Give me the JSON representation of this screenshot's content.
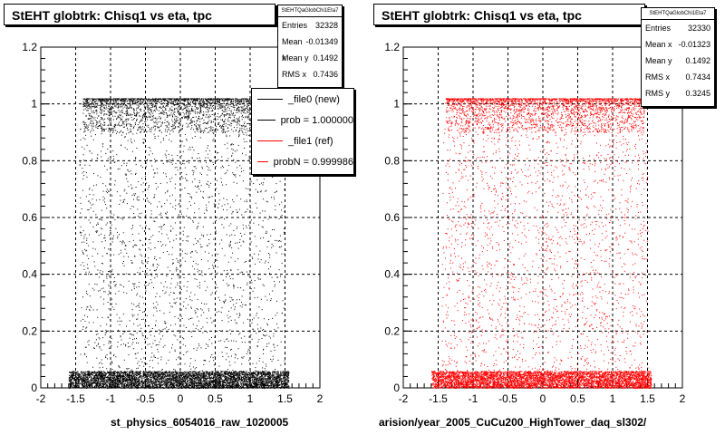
{
  "chart_data": [
    {
      "type": "scatter",
      "title": "StEHT globtrk: Chisq1 vs eta, tpc",
      "xlim": [
        -2,
        2
      ],
      "ylim": [
        0,
        1.2
      ],
      "x_ticks": [
        "-2",
        "-1.5",
        "-1",
        "-0.5",
        "0",
        "0.5",
        "1",
        "1.5",
        "2"
      ],
      "y_ticks": [
        "0",
        "0.2",
        "0.4",
        "0.6",
        "0.8",
        "1",
        "1.2"
      ],
      "grid": true,
      "marker_color": "#000000",
      "stats": {
        "name": "StEHTQaGlobChi1Eta7",
        "rows": [
          {
            "label": "Entries",
            "value": "32328"
          },
          {
            "label": "Mean x",
            "value": "-0.01349"
          },
          {
            "label": "Mean y",
            "value": "0.1492"
          },
          {
            "label": "RMS x",
            "value": "0.7436"
          }
        ]
      },
      "legend": [
        {
          "label": "_file0 (new)",
          "color": "#000000"
        },
        {
          "label": "prob = 1.000000",
          "color": "#000000"
        },
        {
          "label": "_file1 (ref)",
          "color": "#ff0000"
        },
        {
          "label": "probN = 0.999986",
          "color": "#ff0000"
        }
      ],
      "xcaption": "st_physics_6054016_raw_1020005",
      "footer": "",
      "distribution": {
        "dense_band_y": [
          0.0,
          0.06
        ],
        "top_band_y": [
          0.9,
          1.02
        ],
        "x_range": [
          -1.6,
          1.55
        ]
      }
    },
    {
      "type": "scatter",
      "title": "StEHT globtrk: Chisq1 vs eta, tpc",
      "xlim": [
        -2,
        2
      ],
      "ylim": [
        0,
        1.2
      ],
      "x_ticks": [
        "-2",
        "-1.5",
        "-1",
        "-0.5",
        "0",
        "0.5",
        "1",
        "1.5",
        "2"
      ],
      "y_ticks": [
        "0",
        "0.2",
        "0.4",
        "0.6",
        "0.8",
        "1",
        "1.2"
      ],
      "grid": true,
      "marker_color": "#ff0000",
      "stats": {
        "name": "StEHTQaGlobChi1Eta7",
        "rows": [
          {
            "label": "Entries",
            "value": "32330"
          },
          {
            "label": "Mean x",
            "value": "-0.01323"
          },
          {
            "label": "Mean y",
            "value": "0.1492"
          },
          {
            "label": "RMS x",
            "value": "0.7434"
          },
          {
            "label": "RMS y",
            "value": "0.3245"
          }
        ]
      },
      "xcaption": "arision/year_2005_CuCu200_HighTower_daq_sl302/",
      "distribution": {
        "dense_band_y": [
          0.0,
          0.06
        ],
        "top_band_y": [
          0.9,
          1.02
        ],
        "x_range": [
          -1.6,
          1.55
        ]
      }
    }
  ]
}
